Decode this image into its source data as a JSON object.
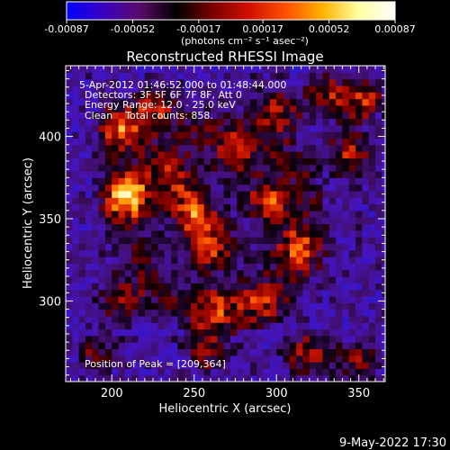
{
  "colorbar": {
    "tick_labels": [
      "-0.00087",
      "-0.00052",
      "-0.00017",
      "0.00017",
      "0.00052",
      "0.00087"
    ],
    "tick_values": [
      -0.00087,
      -0.00052,
      -0.00017,
      0.00017,
      0.00052,
      0.00087
    ],
    "range": [
      -0.00087,
      0.00087
    ],
    "units_label": "(photons cm⁻² s⁻¹ asec⁻²)",
    "colors": [
      "#0000ff",
      "#3a00c0",
      "#5a0a6a",
      "#000000",
      "#7a0000",
      "#d01000",
      "#ff5000",
      "#ffb000",
      "#ffffa0",
      "#ffffff"
    ]
  },
  "chart_data": {
    "type": "heatmap",
    "title": "Reconstructed RHESSI Image",
    "xlabel": "Heliocentric X (arcsec)",
    "ylabel": "Heliocentric Y (arcsec)",
    "xlim": [
      172,
      366
    ],
    "ylim": [
      251,
      443
    ],
    "xticks": [
      200,
      250,
      300,
      350
    ],
    "yticks": [
      300,
      350,
      400
    ],
    "info_lines": [
      "5-Apr-2012 01:46:52.000 to 01:48:44.000",
      "Detectors: 3F 5F 6F 7F 8F, Att 0",
      "Energy Range: 12.0 - 25.0 keV",
      "Clean    Total counts: 858."
    ],
    "peak_label": "Position of Peak = [209,364]",
    "peak": [
      209,
      364
    ],
    "bright_regions": [
      {
        "x": 209,
        "y": 364,
        "level": 1.0
      },
      {
        "x": 205,
        "y": 405,
        "level": 0.85
      },
      {
        "x": 226,
        "y": 419,
        "level": 0.6
      },
      {
        "x": 250,
        "y": 354,
        "level": 0.85
      },
      {
        "x": 260,
        "y": 334,
        "level": 0.75
      },
      {
        "x": 295,
        "y": 362,
        "level": 0.7
      },
      {
        "x": 312,
        "y": 333,
        "level": 0.55
      },
      {
        "x": 275,
        "y": 390,
        "level": 0.6
      },
      {
        "x": 300,
        "y": 415,
        "level": 0.55
      },
      {
        "x": 345,
        "y": 390,
        "level": 0.55
      },
      {
        "x": 352,
        "y": 423,
        "level": 0.65
      },
      {
        "x": 330,
        "y": 425,
        "level": 0.5
      },
      {
        "x": 262,
        "y": 295,
        "level": 0.5
      },
      {
        "x": 290,
        "y": 300,
        "level": 0.45
      },
      {
        "x": 205,
        "y": 300,
        "level": 0.45
      },
      {
        "x": 320,
        "y": 268,
        "level": 0.55
      },
      {
        "x": 350,
        "y": 262,
        "level": 0.45
      },
      {
        "x": 190,
        "y": 268,
        "level": 0.35
      },
      {
        "x": 258,
        "y": 270,
        "level": 0.45
      },
      {
        "x": 237,
        "y": 374,
        "level": 0.55
      }
    ]
  },
  "footer": {
    "timestamp": "9-May-2022 17:30"
  }
}
